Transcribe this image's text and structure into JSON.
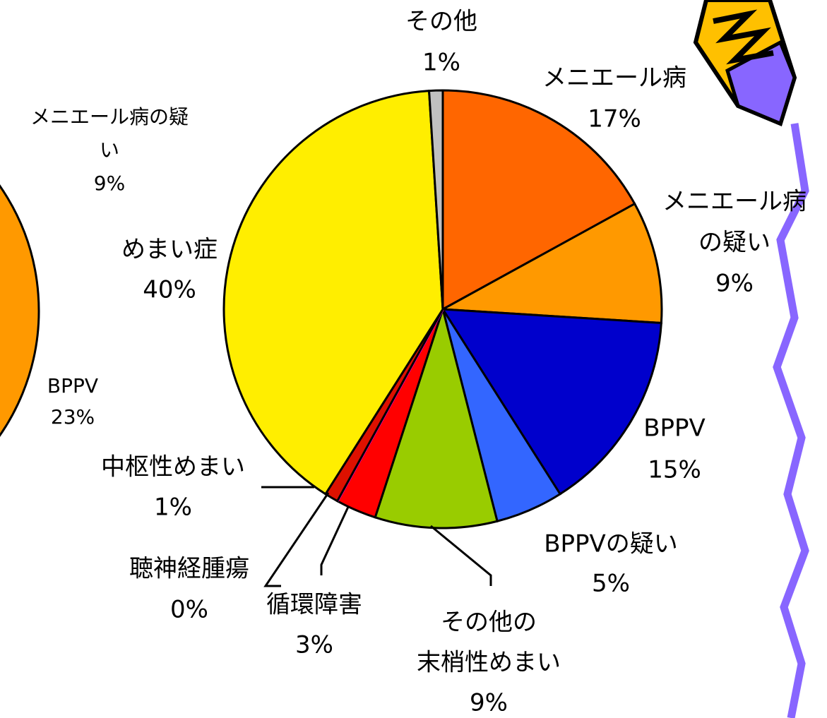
{
  "chart_data": [
    {
      "type": "pie",
      "categories": [
        "メニエール病",
        [
          "メニエール病",
          "の疑い"
        ],
        "BPPV",
        "BPPVの疑い",
        [
          "その他の",
          "末梢性めまい"
        ],
        "循環障害",
        "聴神経腫瘍",
        "中枢性めまい",
        "めまい症",
        "その他"
      ],
      "values": [
        17,
        9,
        15,
        5,
        9,
        3,
        0,
        1,
        40,
        1
      ],
      "value_labels": [
        "17%",
        "9%",
        "15%",
        "5%",
        "9%",
        "3%",
        "0%",
        "1%",
        "40%",
        "1%"
      ],
      "colors": [
        "#ff6600",
        "#ff9900",
        "#0000cc",
        "#3366ff",
        "#99cc00",
        "#ff0000",
        "#ff00ff",
        "#dd1100",
        "#ffee00",
        "#c0c0c0"
      ]
    },
    {
      "type": "pie",
      "categories": [
        [
          "メニエール病の疑",
          "い"
        ],
        "BPPV"
      ],
      "values": [
        9,
        23
      ],
      "value_labels": [
        "9%",
        "23%"
      ],
      "colors": [
        "#ff9900",
        "#0000cc"
      ]
    }
  ]
}
